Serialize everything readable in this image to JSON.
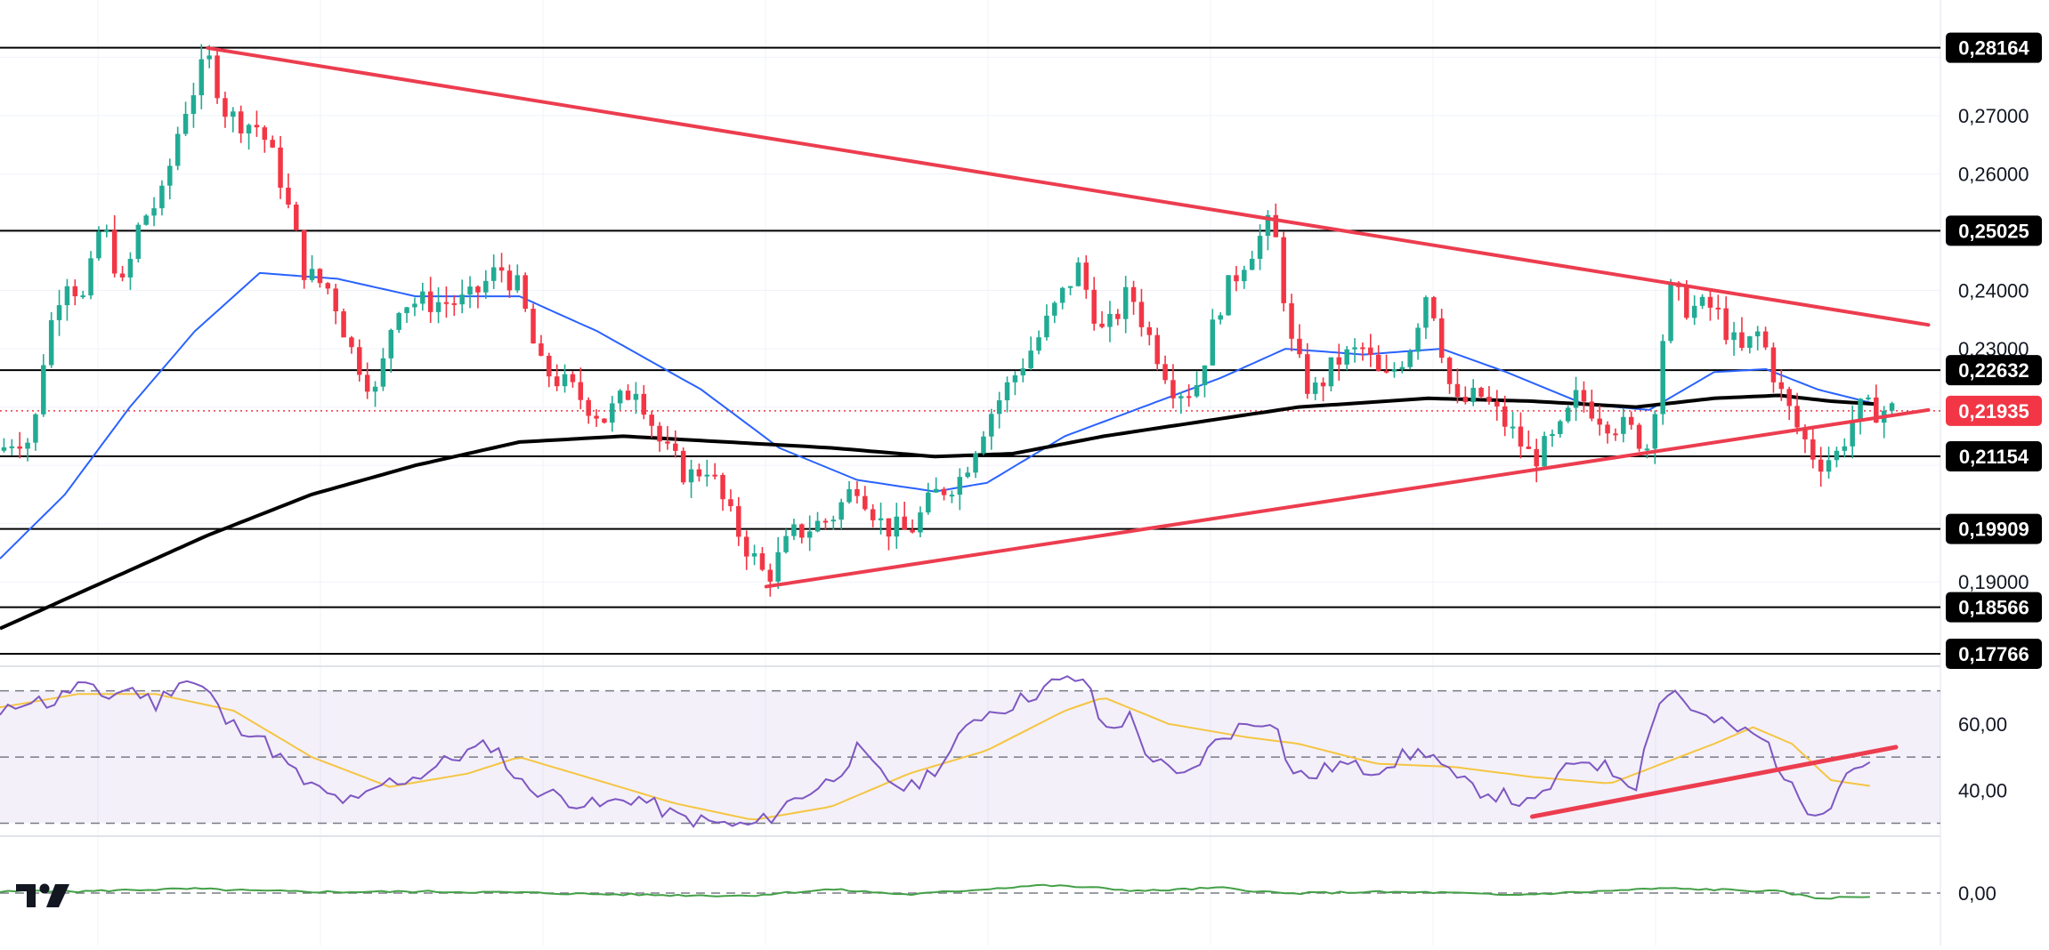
{
  "chart_data": {
    "type": "candlestick",
    "colors": {
      "up": "#22ab94",
      "down": "#f23645",
      "trendline": "#ec3d4f",
      "ma_short": "#2962ff",
      "ma_long": "#000000",
      "rsi": "#7e57c2",
      "rsi_ma": "#f5c542",
      "osc": "#43a047",
      "level": "#000000",
      "current": "#f23645"
    },
    "price_axis": {
      "ylim": [
        0.1766,
        0.288
      ],
      "ticks": [
        "0,27000",
        "0,26000",
        "0,24000",
        "0,23000",
        "0,19000"
      ]
    },
    "horizontal_levels": [
      {
        "value": 0.28164,
        "label": "0,28164"
      },
      {
        "value": 0.25025,
        "label": "0,25025"
      },
      {
        "value": 0.22632,
        "label": "0,22632"
      },
      {
        "value": 0.21154,
        "label": "0,21154"
      },
      {
        "value": 0.19909,
        "label": "0,19909"
      },
      {
        "value": 0.18566,
        "label": "0,18566"
      },
      {
        "value": 0.17766,
        "label": "0,17766"
      }
    ],
    "current_price": {
      "value": 0.21935,
      "label": "0,21935"
    },
    "trendlines": [
      {
        "name": "",
        "from": [
          160,
          0.2816
        ],
        "to": [
          1485,
          0.2341
        ]
      },
      {
        "name": "",
        "from": [
          590,
          0.1892
        ],
        "to": [
          1485,
          0.2195
        ]
      }
    ],
    "candles": {
      "bars": 240,
      "anchors": [
        [
          0,
          0.2125
        ],
        [
          12,
          0.215
        ],
        [
          25,
          0.214
        ],
        [
          35,
          0.231
        ],
        [
          50,
          0.243
        ],
        [
          65,
          0.238
        ],
        [
          78,
          0.252
        ],
        [
          95,
          0.24
        ],
        [
          108,
          0.252
        ],
        [
          125,
          0.256
        ],
        [
          140,
          0.27
        ],
        [
          160,
          0.28
        ],
        [
          175,
          0.27
        ],
        [
          200,
          0.268
        ],
        [
          215,
          0.26
        ],
        [
          235,
          0.243
        ],
        [
          255,
          0.24
        ],
        [
          270,
          0.23
        ],
        [
          290,
          0.222
        ],
        [
          305,
          0.238
        ],
        [
          330,
          0.238
        ],
        [
          360,
          0.238
        ],
        [
          385,
          0.244
        ],
        [
          400,
          0.24
        ],
        [
          415,
          0.227
        ],
        [
          440,
          0.223
        ],
        [
          465,
          0.218
        ],
        [
          490,
          0.224
        ],
        [
          510,
          0.213
        ],
        [
          530,
          0.208
        ],
        [
          545,
          0.21
        ],
        [
          560,
          0.202
        ],
        [
          575,
          0.196
        ],
        [
          590,
          0.1905
        ],
        [
          610,
          0.198
        ],
        [
          640,
          0.201
        ],
        [
          660,
          0.207
        ],
        [
          680,
          0.1995
        ],
        [
          700,
          0.1985
        ],
        [
          720,
          0.205
        ],
        [
          740,
          0.208
        ],
        [
          760,
          0.218
        ],
        [
          780,
          0.225
        ],
        [
          800,
          0.232
        ],
        [
          815,
          0.238
        ],
        [
          830,
          0.244
        ],
        [
          850,
          0.232
        ],
        [
          870,
          0.24
        ],
        [
          885,
          0.232
        ],
        [
          905,
          0.223
        ],
        [
          920,
          0.223
        ],
        [
          940,
          0.238
        ],
        [
          960,
          0.246
        ],
        [
          980,
          0.252
        ],
        [
          995,
          0.23
        ],
        [
          1010,
          0.222
        ],
        [
          1030,
          0.228
        ],
        [
          1050,
          0.23
        ],
        [
          1065,
          0.224
        ],
        [
          1085,
          0.23
        ],
        [
          1100,
          0.241
        ],
        [
          1120,
          0.22
        ],
        [
          1140,
          0.222
        ],
        [
          1160,
          0.217
        ],
        [
          1180,
          0.211
        ],
        [
          1200,
          0.215
        ],
        [
          1215,
          0.222
        ],
        [
          1235,
          0.218
        ],
        [
          1255,
          0.216
        ],
        [
          1270,
          0.213
        ],
        [
          1285,
          0.24
        ],
        [
          1300,
          0.237
        ],
        [
          1320,
          0.237
        ],
        [
          1340,
          0.229
        ],
        [
          1355,
          0.233
        ],
        [
          1370,
          0.223
        ],
        [
          1385,
          0.216
        ],
        [
          1400,
          0.2105
        ],
        [
          1415,
          0.212
        ],
        [
          1430,
          0.2195
        ],
        [
          1445,
          0.2195
        ]
      ]
    },
    "ma_short": [
      [
        0,
        0.194
      ],
      [
        50,
        0.205
      ],
      [
        100,
        0.22
      ],
      [
        150,
        0.233
      ],
      [
        200,
        0.243
      ],
      [
        260,
        0.242
      ],
      [
        320,
        0.239
      ],
      [
        400,
        0.239
      ],
      [
        460,
        0.233
      ],
      [
        540,
        0.223
      ],
      [
        600,
        0.213
      ],
      [
        660,
        0.2075
      ],
      [
        720,
        0.2055
      ],
      [
        760,
        0.207
      ],
      [
        820,
        0.215
      ],
      [
        880,
        0.22
      ],
      [
        940,
        0.225
      ],
      [
        990,
        0.23
      ],
      [
        1050,
        0.229
      ],
      [
        1110,
        0.23
      ],
      [
        1160,
        0.226
      ],
      [
        1220,
        0.2205
      ],
      [
        1270,
        0.2195
      ],
      [
        1320,
        0.226
      ],
      [
        1360,
        0.2265
      ],
      [
        1400,
        0.223
      ],
      [
        1445,
        0.2205
      ]
    ],
    "ma_long": [
      [
        0,
        0.182
      ],
      [
        80,
        0.19
      ],
      [
        160,
        0.198
      ],
      [
        240,
        0.205
      ],
      [
        320,
        0.21
      ],
      [
        400,
        0.214
      ],
      [
        480,
        0.215
      ],
      [
        560,
        0.214
      ],
      [
        640,
        0.213
      ],
      [
        720,
        0.2115
      ],
      [
        780,
        0.212
      ],
      [
        850,
        0.215
      ],
      [
        940,
        0.218
      ],
      [
        1000,
        0.22
      ],
      [
        1100,
        0.2215
      ],
      [
        1180,
        0.221
      ],
      [
        1260,
        0.22
      ],
      [
        1320,
        0.2215
      ],
      [
        1370,
        0.222
      ],
      [
        1410,
        0.221
      ],
      [
        1445,
        0.2205
      ]
    ],
    "rsi": {
      "ticks": [
        {
          "value": 60,
          "label": "60,00"
        },
        {
          "value": 40,
          "label": "40,00"
        }
      ],
      "bands": [
        70,
        50,
        30
      ],
      "ylim": [
        28,
        75
      ],
      "line": [
        [
          0,
          62
        ],
        [
          20,
          68
        ],
        [
          40,
          66
        ],
        [
          60,
          72
        ],
        [
          80,
          68
        ],
        [
          100,
          71
        ],
        [
          120,
          66
        ],
        [
          140,
          74
        ],
        [
          160,
          70
        ],
        [
          175,
          60
        ],
        [
          195,
          58
        ],
        [
          215,
          50
        ],
        [
          235,
          42
        ],
        [
          255,
          38
        ],
        [
          275,
          36
        ],
        [
          295,
          42
        ],
        [
          320,
          44
        ],
        [
          350,
          50
        ],
        [
          380,
          54
        ],
        [
          400,
          42
        ],
        [
          430,
          38
        ],
        [
          460,
          35
        ],
        [
          490,
          38
        ],
        [
          520,
          32
        ],
        [
          550,
          30
        ],
        [
          575,
          29
        ],
        [
          590,
          31
        ],
        [
          610,
          37
        ],
        [
          640,
          43
        ],
        [
          660,
          52
        ],
        [
          680,
          44
        ],
        [
          700,
          40
        ],
        [
          730,
          50
        ],
        [
          750,
          62
        ],
        [
          780,
          66
        ],
        [
          810,
          72
        ],
        [
          835,
          74
        ],
        [
          850,
          58
        ],
        [
          870,
          62
        ],
        [
          885,
          50
        ],
        [
          910,
          43
        ],
        [
          940,
          56
        ],
        [
          960,
          60
        ],
        [
          980,
          62
        ],
        [
          995,
          45
        ],
        [
          1010,
          44
        ],
        [
          1030,
          48
        ],
        [
          1055,
          46
        ],
        [
          1080,
          50
        ],
        [
          1100,
          52
        ],
        [
          1120,
          43
        ],
        [
          1140,
          40
        ],
        [
          1160,
          38
        ],
        [
          1180,
          35
        ],
        [
          1200,
          44
        ],
        [
          1220,
          50
        ],
        [
          1240,
          46
        ],
        [
          1260,
          42
        ],
        [
          1275,
          66
        ],
        [
          1290,
          70
        ],
        [
          1310,
          62
        ],
        [
          1340,
          58
        ],
        [
          1360,
          55
        ],
        [
          1380,
          40
        ],
        [
          1395,
          34
        ],
        [
          1410,
          36
        ],
        [
          1425,
          48
        ],
        [
          1445,
          46
        ]
      ],
      "ma": [
        [
          0,
          65
        ],
        [
          60,
          69
        ],
        [
          120,
          69
        ],
        [
          180,
          64
        ],
        [
          240,
          50
        ],
        [
          300,
          41
        ],
        [
          360,
          45
        ],
        [
          400,
          50
        ],
        [
          460,
          43
        ],
        [
          520,
          36
        ],
        [
          580,
          31
        ],
        [
          640,
          35
        ],
        [
          700,
          45
        ],
        [
          760,
          52
        ],
        [
          820,
          64
        ],
        [
          850,
          68
        ],
        [
          900,
          60
        ],
        [
          960,
          56
        ],
        [
          1000,
          54
        ],
        [
          1060,
          48
        ],
        [
          1120,
          47
        ],
        [
          1180,
          44
        ],
        [
          1240,
          42
        ],
        [
          1280,
          48
        ],
        [
          1320,
          54
        ],
        [
          1350,
          59
        ],
        [
          1380,
          54
        ],
        [
          1410,
          43
        ],
        [
          1445,
          41
        ]
      ],
      "trendline": {
        "from": [
          1180,
          32
        ],
        "to": [
          1460,
          53
        ]
      }
    },
    "oscillator": {
      "ticks": [
        {
          "value": 0,
          "label": "0,00"
        }
      ],
      "ylim": [
        -0.01,
        0.01
      ],
      "line": [
        [
          0,
          0.0002
        ],
        [
          30,
          0.0005
        ],
        [
          60,
          0.0003
        ],
        [
          100,
          0.0006
        ],
        [
          150,
          0.0008
        ],
        [
          200,
          0.0004
        ],
        [
          260,
          0.0002
        ],
        [
          320,
          0.0003
        ],
        [
          400,
          0.0001
        ],
        [
          460,
          -0.0002
        ],
        [
          520,
          -0.0004
        ],
        [
          575,
          -0.0005
        ],
        [
          640,
          0.0007
        ],
        [
          700,
          -0.0003
        ],
        [
          760,
          0.0008
        ],
        [
          800,
          0.0015
        ],
        [
          830,
          0.0012
        ],
        [
          880,
          0.0004
        ],
        [
          940,
          0.001
        ],
        [
          990,
          -0.0001
        ],
        [
          1050,
          0.0002
        ],
        [
          1110,
          0.0001
        ],
        [
          1160,
          -0.0004
        ],
        [
          1220,
          0.0002
        ],
        [
          1280,
          0.0009
        ],
        [
          1330,
          0.0006
        ],
        [
          1370,
          0.0003
        ],
        [
          1400,
          -0.001
        ],
        [
          1445,
          -0.0006
        ]
      ]
    }
  }
}
